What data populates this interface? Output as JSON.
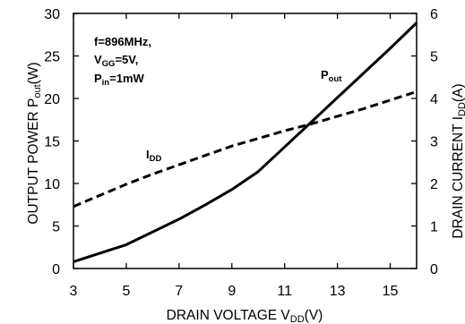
{
  "chart_data": {
    "type": "line",
    "x_axis": {
      "label_main": "DRAIN VOLTAGE V",
      "label_sub": "DD",
      "label_end": "(V)",
      "min": 3,
      "max": 16,
      "ticks": [
        3,
        5,
        7,
        9,
        11,
        13,
        15
      ]
    },
    "y_left": {
      "label_main": "OUTPUT POWER P",
      "label_sub": "out",
      "label_end": "(W)",
      "min": 0,
      "max": 30,
      "ticks": [
        0,
        5,
        10,
        15,
        20,
        25,
        30
      ]
    },
    "y_right": {
      "label_main": "DRAIN CURRENT I",
      "label_sub": "DD",
      "label_end": "(A)",
      "min": 0,
      "max": 6,
      "ticks": [
        0,
        1,
        2,
        3,
        4,
        5,
        6
      ]
    },
    "grid": false,
    "conditions": {
      "line1_main": "f=896MHz,",
      "line2_main": "V",
      "line2_sub": "GG",
      "line2_end": "=5V,",
      "line3_main": "P",
      "line3_sub": "in",
      "line3_end": "=1mW"
    },
    "series": [
      {
        "name_main": "P",
        "name_sub": "out",
        "axis": "left",
        "style": "solid",
        "x": [
          3,
          4,
          5,
          6,
          7,
          8,
          9,
          10,
          11,
          12,
          13,
          14,
          15,
          16
        ],
        "y": [
          0.8,
          1.8,
          2.8,
          4.3,
          5.8,
          7.5,
          9.3,
          11.4,
          14.3,
          17.2,
          20.1,
          23.0,
          25.9,
          28.9
        ]
      },
      {
        "name_main": "I",
        "name_sub": "DD",
        "axis": "right",
        "style": "dashed",
        "x": [
          3,
          4,
          5,
          6,
          7,
          8,
          9,
          10,
          11,
          12,
          13,
          14,
          15,
          16
        ],
        "y": [
          1.46,
          1.72,
          1.98,
          2.22,
          2.44,
          2.66,
          2.88,
          3.06,
          3.24,
          3.4,
          3.58,
          3.76,
          3.96,
          4.16
        ]
      }
    ]
  }
}
